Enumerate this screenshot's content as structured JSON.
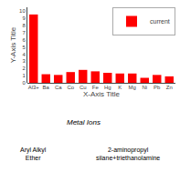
{
  "chart_data": {
    "type": "bar",
    "categories": [
      "Al3+",
      "Ba",
      "Ca",
      "Co",
      "Cu",
      "Fe",
      "Hg",
      "K",
      "Mg",
      "Ni",
      "Pb",
      "Zn"
    ],
    "series": [
      {
        "name": "current",
        "color": "#ff0000",
        "values": [
          9.5,
          1.2,
          1.1,
          1.5,
          1.8,
          1.6,
          1.4,
          1.3,
          1.3,
          0.7,
          1.1,
          0.9
        ]
      }
    ],
    "xlabel": "X-Axis Title",
    "ylabel": "Y-Axis Title",
    "ylim": [
      0,
      10.5
    ],
    "yticks": [
      0,
      1,
      2,
      3,
      4,
      5,
      6,
      7,
      8,
      9,
      10
    ],
    "grid": false,
    "legend": "upper right",
    "annotations": [
      "Metal Ions",
      "Aryl Alkyl\nEther",
      "2-aminopropyl\nsilane+triethanolamine"
    ]
  }
}
